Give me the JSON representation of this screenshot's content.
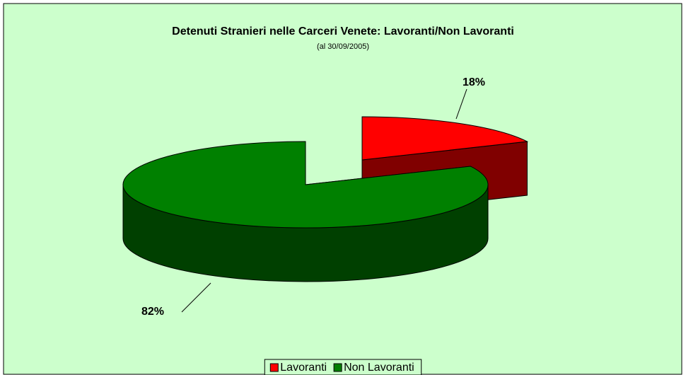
{
  "chart_data": {
    "type": "pie",
    "title": "Detenuti Stranieri nelle Carceri Venete: Lavoranti/Non Lavoranti",
    "subtitle": "(al 30/09/2005)",
    "categories": [
      "Lavoranti",
      "Non Lavoranti"
    ],
    "values": [
      18,
      82
    ],
    "value_labels": [
      "18%",
      "82%"
    ],
    "colors": [
      "#ff0000",
      "#008000"
    ],
    "legend": "bottom"
  }
}
